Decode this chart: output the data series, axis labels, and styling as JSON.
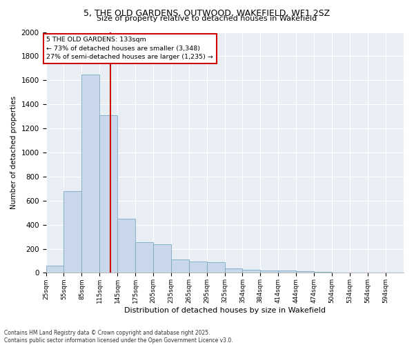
{
  "title_line1": "5, THE OLD GARDENS, OUTWOOD, WAKEFIELD, WF1 2SZ",
  "title_line2": "Size of property relative to detached houses in Wakefield",
  "xlabel": "Distribution of detached houses by size in Wakefield",
  "ylabel": "Number of detached properties",
  "footer_line1": "Contains HM Land Registry data © Crown copyright and database right 2025.",
  "footer_line2": "Contains public sector information licensed under the Open Government Licence v3.0.",
  "property_size": 133,
  "annotation_line1": "5 THE OLD GARDENS: 133sqm",
  "annotation_line2": "← 73% of detached houses are smaller (3,348)",
  "annotation_line3": "27% of semi-detached houses are larger (1,235) →",
  "bar_color": "#c8d8ea",
  "bar_edge_color": "#7aaabf",
  "vline_color": "#cc0000",
  "annotation_box_edge": "#cc0000",
  "background_color": "#e8eef4",
  "bins": [
    25,
    55,
    85,
    115,
    145,
    175,
    205,
    235,
    265,
    295,
    325,
    354,
    384,
    414,
    444,
    474,
    504,
    534,
    564,
    594,
    624
  ],
  "counts": [
    60,
    680,
    1650,
    1310,
    450,
    255,
    235,
    110,
    95,
    90,
    35,
    28,
    22,
    18,
    12,
    8,
    4,
    3,
    2,
    2
  ],
  "ylim": [
    0,
    2000
  ],
  "yticks": [
    0,
    200,
    400,
    600,
    800,
    1000,
    1200,
    1400,
    1600,
    1800,
    2000
  ]
}
